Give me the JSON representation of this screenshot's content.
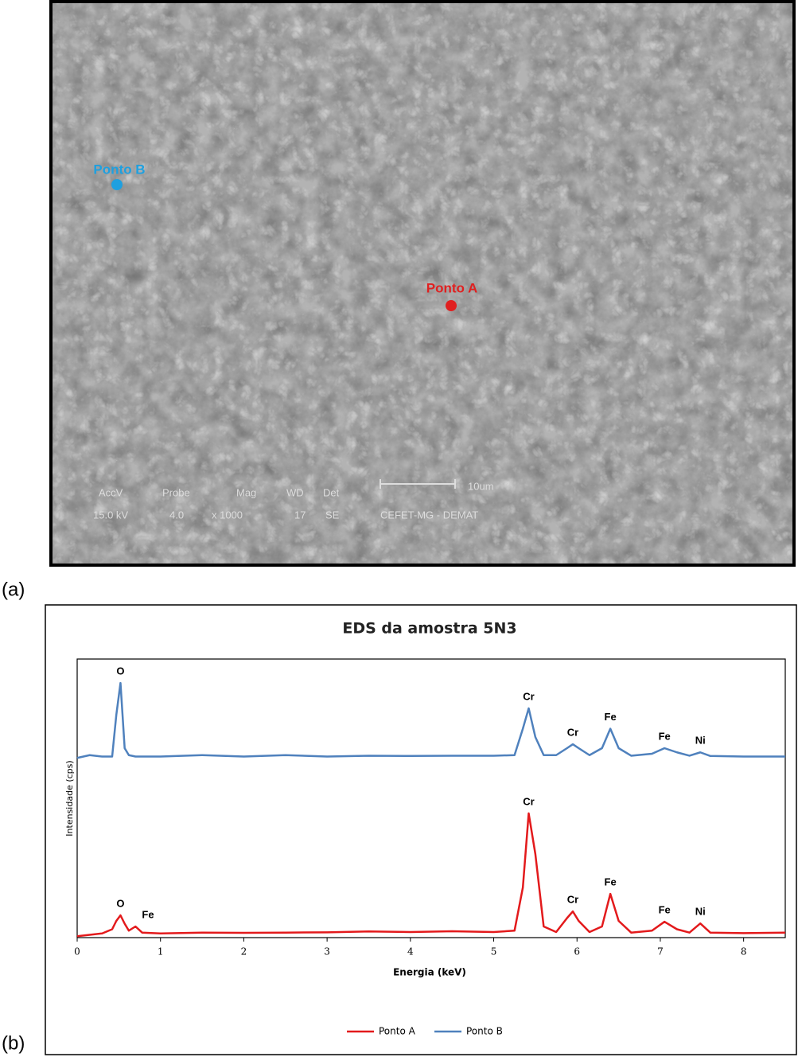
{
  "panel_labels": {
    "a": "(a)",
    "b": "(b)"
  },
  "sem_image": {
    "points": [
      {
        "label": "Ponto B",
        "color": "#1ea0e0"
      },
      {
        "label": "Ponto A",
        "color": "#e02020"
      }
    ],
    "info_header": [
      "AccV",
      "Probe",
      "Mag",
      "WD",
      "Det"
    ],
    "info_values": [
      "15.0 kV",
      "4.0",
      "x 1000",
      "17",
      "SE"
    ],
    "scale_bar": "10um",
    "lab": "CEFET-MG - DEMAT"
  },
  "chart_data": {
    "type": "line",
    "title": "EDS da amostra 5N3",
    "x_label": "Energia (keV)",
    "y_label": "Intensidade (cps)",
    "xlim": [
      0,
      8.5
    ],
    "xticks": [
      0,
      1,
      2,
      3,
      4,
      5,
      6,
      7,
      8
    ],
    "ylim": [
      0,
      100
    ],
    "legend": "bottom",
    "x": [
      0,
      0.15,
      0.3,
      0.42,
      0.47,
      0.52,
      0.57,
      0.62,
      0.7,
      0.78,
      1.0,
      1.5,
      2.0,
      2.5,
      3.0,
      3.5,
      4.0,
      4.5,
      5.0,
      5.25,
      5.35,
      5.42,
      5.5,
      5.6,
      5.75,
      5.88,
      5.95,
      6.02,
      6.15,
      6.3,
      6.4,
      6.5,
      6.65,
      6.9,
      7.05,
      7.2,
      7.35,
      7.48,
      7.6,
      8.0,
      8.5
    ],
    "series": [
      {
        "name": "Ponto A",
        "color": "#e31a1c",
        "values": [
          0.5,
          1,
          1.5,
          3,
          6,
          8,
          5,
          2.5,
          4,
          1.8,
          1.5,
          1.8,
          1.7,
          1.8,
          1.9,
          2.2,
          2,
          2.3,
          2,
          2.5,
          18,
          44.6,
          30,
          4,
          2,
          7,
          9.4,
          6,
          2,
          4,
          15.7,
          6,
          1.8,
          2.5,
          5.7,
          3,
          1.8,
          5.1,
          1.8,
          1.6,
          1.8
        ]
      },
      {
        "name": "Ponto B",
        "color": "#4f81bd",
        "values": [
          64.5,
          65.5,
          65,
          65,
          80,
          91.4,
          68,
          65.5,
          65,
          65,
          65,
          65.5,
          65,
          65.5,
          65,
          65.3,
          65.2,
          65.3,
          65.3,
          65.5,
          75,
          82.3,
          72,
          65.5,
          65.5,
          68,
          69.4,
          68,
          65.5,
          68,
          75,
          68,
          65.3,
          66,
          68,
          66.5,
          65.3,
          66.5,
          65.2,
          65,
          65
        ]
      }
    ],
    "annotations": [
      {
        "text": "O",
        "x": 0.52,
        "y": 91.4
      },
      {
        "text": "Cr",
        "x": 5.42,
        "y": 82.3
      },
      {
        "text": "Cr",
        "x": 5.95,
        "y": 69.4
      },
      {
        "text": "Fe",
        "x": 6.4,
        "y": 75
      },
      {
        "text": "Fe",
        "x": 7.05,
        "y": 68
      },
      {
        "text": "Ni",
        "x": 7.48,
        "y": 66.5
      },
      {
        "text": "O",
        "x": 0.52,
        "y": 8
      },
      {
        "text": "Fe",
        "x": 0.72,
        "y": 4
      },
      {
        "text": "Cr",
        "x": 5.42,
        "y": 44.6
      },
      {
        "text": "Cr",
        "x": 5.95,
        "y": 9.4
      },
      {
        "text": "Fe",
        "x": 6.4,
        "y": 15.7
      },
      {
        "text": "Fe",
        "x": 7.05,
        "y": 5.7
      },
      {
        "text": "Ni",
        "x": 7.48,
        "y": 5.1
      }
    ]
  }
}
